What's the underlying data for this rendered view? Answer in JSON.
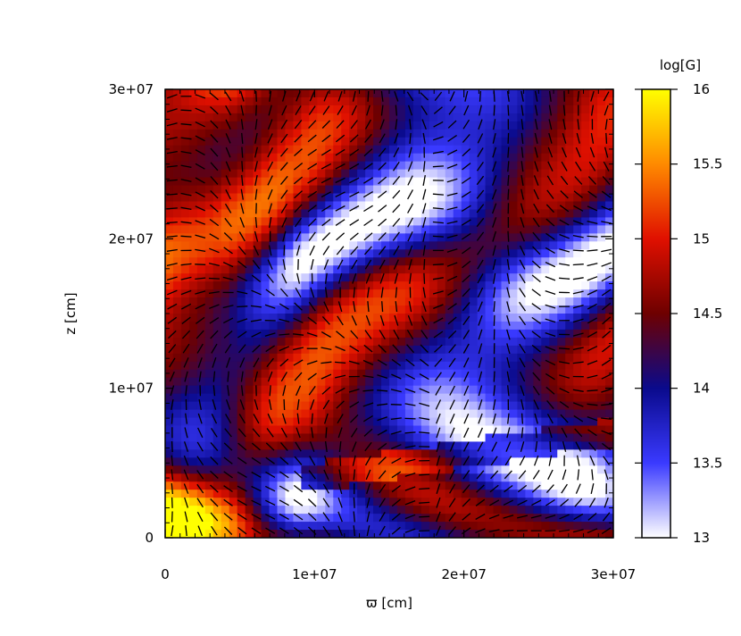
{
  "chart_data": {
    "type": "heatmap",
    "title": "",
    "xlabel": "ϖ [cm]",
    "ylabel": "z [cm]",
    "xlim": [
      0,
      30000000
    ],
    "ylim": [
      0,
      30000000
    ],
    "x_ticks": [
      {
        "value": 0,
        "label": "0"
      },
      {
        "value": 10000000,
        "label": "1e+07"
      },
      {
        "value": 20000000,
        "label": "2e+07"
      },
      {
        "value": 30000000,
        "label": "3e+07"
      }
    ],
    "y_ticks": [
      {
        "value": 0,
        "label": "0"
      },
      {
        "value": 10000000,
        "label": "1e+07"
      },
      {
        "value": 20000000,
        "label": "2e+07"
      },
      {
        "value": 30000000,
        "label": "3e+07"
      }
    ],
    "colorbar": {
      "label": "log[G]",
      "range": [
        13,
        16
      ],
      "ticks": [
        {
          "value": 13,
          "label": "13"
        },
        {
          "value": 13.5,
          "label": "13.5"
        },
        {
          "value": 14,
          "label": "14"
        },
        {
          "value": 14.5,
          "label": "14.5"
        },
        {
          "value": 15,
          "label": "15"
        },
        {
          "value": 15.5,
          "label": "15.5"
        },
        {
          "value": 16,
          "label": "16"
        }
      ],
      "colormap": [
        {
          "value": 13,
          "color": "#ffffff"
        },
        {
          "value": 13.5,
          "color": "#3a3aff"
        },
        {
          "value": 14,
          "color": "#0a0a8c"
        },
        {
          "value": 14.5,
          "color": "#6e0000"
        },
        {
          "value": 15,
          "color": "#e01000"
        },
        {
          "value": 15.5,
          "color": "#ff8a00"
        },
        {
          "value": 16,
          "color": "#ffff00"
        }
      ]
    },
    "grid": false,
    "vector_field": true
  }
}
